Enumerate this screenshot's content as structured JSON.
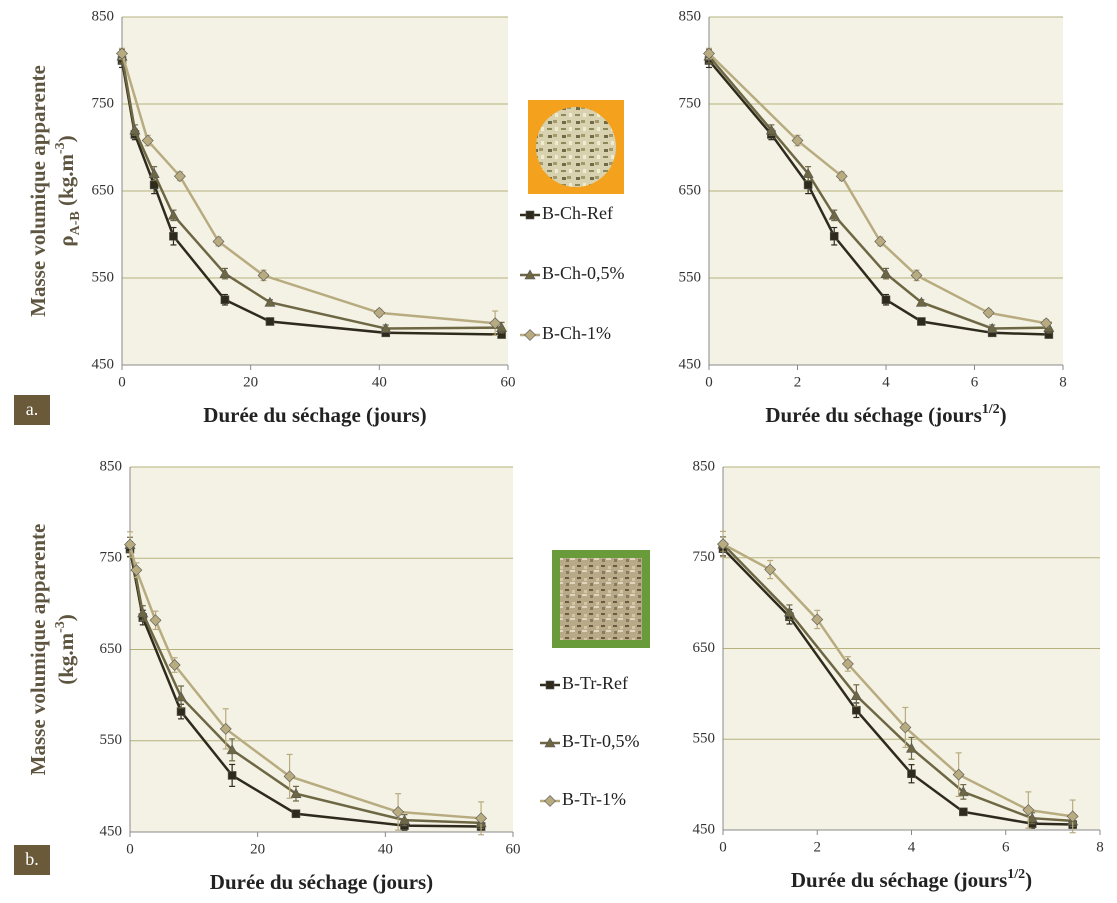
{
  "chart_data": [
    {
      "type": "line",
      "panel_label": "a.",
      "y_label": "Masse volumique apparente",
      "y_unit": [
        {
          "text": "ρ"
        },
        {
          "text": "A-B",
          "shift": "sub"
        },
        {
          "text": "  (kg.m"
        },
        {
          "text": "-3",
          "shift": "super"
        },
        {
          "text": ")"
        }
      ],
      "x_label": [
        {
          "text": "Durée du séchage (jours)"
        }
      ],
      "xlim": [
        0,
        60
      ],
      "xticks": [
        0,
        20,
        40,
        60
      ],
      "ylim": [
        450,
        850
      ],
      "yticks": [
        450,
        550,
        650,
        750,
        850
      ],
      "grid": true,
      "series": [
        {
          "name": "B-Ch-Ref",
          "color": "#2e2b1c",
          "marker": "square",
          "x": [
            0,
            2,
            5,
            8,
            16,
            23,
            41,
            59
          ],
          "values": [
            800,
            715,
            657,
            598,
            525,
            500,
            487,
            485
          ],
          "errors": [
            8,
            6,
            10,
            10,
            6,
            3,
            3,
            3
          ]
        },
        {
          "name": "B-Ch-0,5%",
          "color": "#6e6744",
          "marker": "triangle",
          "x": [
            0,
            2,
            5,
            8,
            16,
            23,
            41,
            59
          ],
          "values": [
            805,
            720,
            670,
            622,
            555,
            522,
            492,
            493
          ],
          "errors": [
            8,
            6,
            8,
            6,
            6,
            3,
            4,
            6
          ]
        },
        {
          "name": "B-Ch-1%",
          "color": "#b8ab80",
          "marker": "diamond",
          "x": [
            0,
            4,
            9,
            15,
            22,
            40,
            58
          ],
          "values": [
            808,
            708,
            667,
            592,
            553,
            510,
            498
          ],
          "errors": [
            6,
            6,
            5,
            5,
            6,
            4,
            14
          ]
        }
      ]
    },
    {
      "type": "line",
      "x_label": [
        {
          "text": "Durée du séchage (jours"
        },
        {
          "text": "1/2",
          "shift": "super"
        },
        {
          "text": ")"
        }
      ],
      "xlim": [
        0,
        8
      ],
      "xticks": [
        0,
        2,
        4,
        6,
        8
      ],
      "ylim": [
        450,
        850
      ],
      "yticks": [
        450,
        550,
        650,
        750,
        850
      ],
      "grid": true,
      "series": [
        {
          "color": "#2e2b1c",
          "marker": "square",
          "x": [
            0,
            1.41,
            2.24,
            2.83,
            4,
            4.8,
            6.4,
            7.68
          ],
          "values": [
            800,
            715,
            657,
            598,
            525,
            500,
            487,
            485
          ],
          "errors": [
            8,
            6,
            10,
            10,
            6,
            3,
            3,
            3
          ]
        },
        {
          "color": "#6e6744",
          "marker": "triangle",
          "x": [
            0,
            1.41,
            2.24,
            2.83,
            4,
            4.8,
            6.4,
            7.68
          ],
          "values": [
            805,
            720,
            670,
            622,
            555,
            522,
            492,
            493
          ],
          "errors": [
            8,
            6,
            8,
            6,
            6,
            3,
            4,
            6
          ]
        },
        {
          "color": "#b8ab80",
          "marker": "diamond",
          "x": [
            0,
            2,
            3,
            3.87,
            4.69,
            6.32,
            7.62
          ],
          "values": [
            808,
            708,
            667,
            592,
            553,
            510,
            498
          ],
          "errors": [
            6,
            6,
            5,
            5,
            6,
            4,
            4
          ]
        }
      ]
    },
    {
      "type": "line",
      "panel_label": "b.",
      "y_label": "Masse volumique apparente",
      "y_unit": [
        {
          "text": "(kg.m"
        },
        {
          "text": "-3",
          "shift": "super"
        },
        {
          "text": ")"
        }
      ],
      "x_label": [
        {
          "text": "Durée du séchage (jours)"
        }
      ],
      "xlim": [
        0,
        60
      ],
      "xticks": [
        0,
        20,
        40,
        60
      ],
      "ylim": [
        450,
        850
      ],
      "yticks": [
        450,
        550,
        650,
        750,
        850
      ],
      "grid": true,
      "series": [
        {
          "name": "B-Tr-Ref",
          "color": "#2e2b1c",
          "marker": "square",
          "x": [
            0,
            2,
            8,
            16,
            26,
            43,
            55
          ],
          "values": [
            760,
            685,
            582,
            512,
            470,
            457,
            456
          ],
          "errors": [
            8,
            8,
            8,
            12,
            3,
            5,
            4
          ]
        },
        {
          "name": "B-Tr-0,5%",
          "color": "#6e6744",
          "marker": "triangle",
          "x": [
            0,
            2,
            8,
            16,
            26,
            43,
            55
          ],
          "values": [
            765,
            690,
            598,
            540,
            492,
            463,
            460
          ],
          "errors": [
            8,
            8,
            12,
            12,
            8,
            6,
            6
          ]
        },
        {
          "name": "B-Tr-1%",
          "color": "#b8ab80",
          "marker": "diamond",
          "x": [
            0,
            1,
            4,
            7,
            15,
            25,
            42,
            55
          ],
          "values": [
            765,
            737,
            682,
            633,
            563,
            511,
            472,
            465
          ],
          "errors": [
            14,
            8,
            10,
            8,
            22,
            24,
            20,
            18
          ]
        }
      ]
    },
    {
      "type": "line",
      "x_label": [
        {
          "text": "Durée du séchage (jours"
        },
        {
          "text": "1/2",
          "shift": "super"
        },
        {
          "text": ")"
        }
      ],
      "xlim": [
        0,
        8
      ],
      "xticks": [
        0,
        2,
        4,
        6,
        8
      ],
      "ylim": [
        450,
        850
      ],
      "yticks": [
        450,
        550,
        650,
        750,
        850
      ],
      "grid": true,
      "series": [
        {
          "color": "#2e2b1c",
          "marker": "square",
          "x": [
            0,
            1.41,
            2.83,
            4,
            5.1,
            6.56,
            7.42
          ],
          "values": [
            760,
            685,
            582,
            512,
            470,
            457,
            456
          ],
          "errors": [
            8,
            8,
            8,
            10,
            3,
            5,
            4
          ]
        },
        {
          "color": "#6e6744",
          "marker": "triangle",
          "x": [
            0,
            1.41,
            2.83,
            4,
            5.1,
            6.56,
            7.42
          ],
          "values": [
            765,
            690,
            598,
            540,
            492,
            463,
            460
          ],
          "errors": [
            8,
            8,
            12,
            12,
            8,
            6,
            6
          ]
        },
        {
          "color": "#b8ab80",
          "marker": "diamond",
          "x": [
            0,
            1,
            2,
            2.65,
            3.87,
            5,
            6.48,
            7.42
          ],
          "values": [
            765,
            737,
            682,
            633,
            563,
            511,
            472,
            465
          ],
          "errors": [
            14,
            10,
            10,
            8,
            22,
            24,
            20,
            18
          ]
        }
      ]
    }
  ]
}
